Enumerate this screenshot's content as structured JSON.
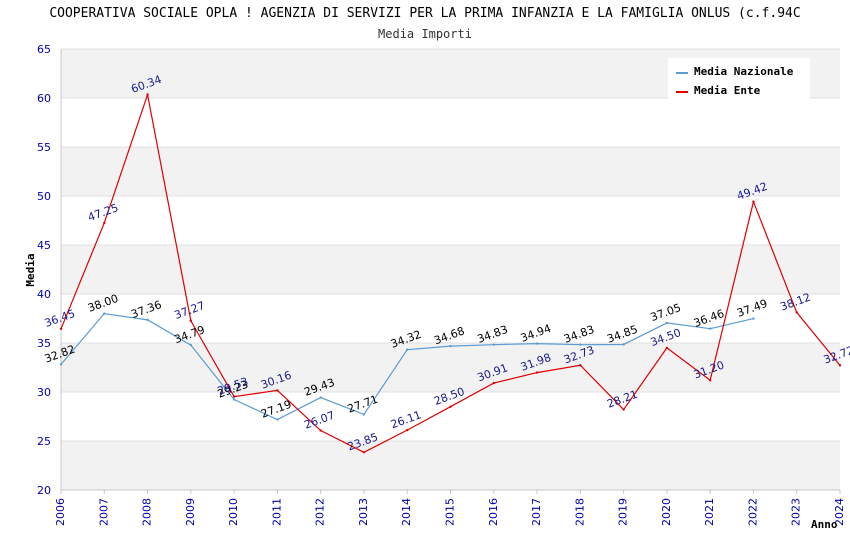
{
  "chart_data": {
    "type": "line",
    "title": "COOPERATIVA SOCIALE OPLA ! AGENZIA DI SERVIZI PER LA PRIMA INFANZIA E LA FAMIGLIA ONLUS (c.f.94C",
    "subtitle": "Media Importi",
    "xlabel": "Anno",
    "ylabel": "Media",
    "ylim": [
      20,
      65
    ],
    "yticks": [
      20,
      25,
      30,
      35,
      40,
      45,
      50,
      55,
      60,
      65
    ],
    "x": [
      "2006",
      "2007",
      "2008",
      "2009",
      "2010",
      "2011",
      "2012",
      "2013",
      "2014",
      "2015",
      "2016",
      "2017",
      "2018",
      "2019",
      "2020",
      "2021",
      "2022",
      "2023",
      "2024"
    ],
    "grid": true,
    "legend_position": "top-right",
    "series": [
      {
        "name": "Media Nazionale",
        "color": "#5b9bd5",
        "label_color": "#000000",
        "values": [
          32.82,
          38.0,
          37.36,
          34.79,
          29.23,
          27.19,
          29.43,
          27.71,
          34.32,
          34.68,
          34.83,
          34.94,
          34.83,
          34.85,
          37.05,
          36.46,
          37.49,
          null,
          null
        ],
        "labels": [
          "32.82",
          "38.00",
          "37.36",
          "34.79",
          "29.23",
          "27.19",
          "29.43",
          "27.71",
          "34.32",
          "34.68",
          "34.83",
          "34.94",
          "34.83",
          "34.85",
          "37.05",
          "36.46",
          "37.49",
          null,
          null
        ]
      },
      {
        "name": "Media Ente",
        "color": "#e00000",
        "label_color": "#1a1a8c",
        "values": [
          36.45,
          47.25,
          60.34,
          37.27,
          29.53,
          30.16,
          26.07,
          23.85,
          26.11,
          28.5,
          30.91,
          31.98,
          32.73,
          28.21,
          34.5,
          31.2,
          49.42,
          38.12,
          32.72
        ],
        "labels": [
          "36.45",
          "47.25",
          "60.34",
          "37.27",
          "29.53",
          "30.16",
          "26.07",
          "23.85",
          "26.11",
          "28.50",
          "30.91",
          "31.98",
          "32.73",
          "28.21",
          "34.50",
          "31.20",
          "49.42",
          "38.12",
          "32.72"
        ]
      }
    ]
  }
}
